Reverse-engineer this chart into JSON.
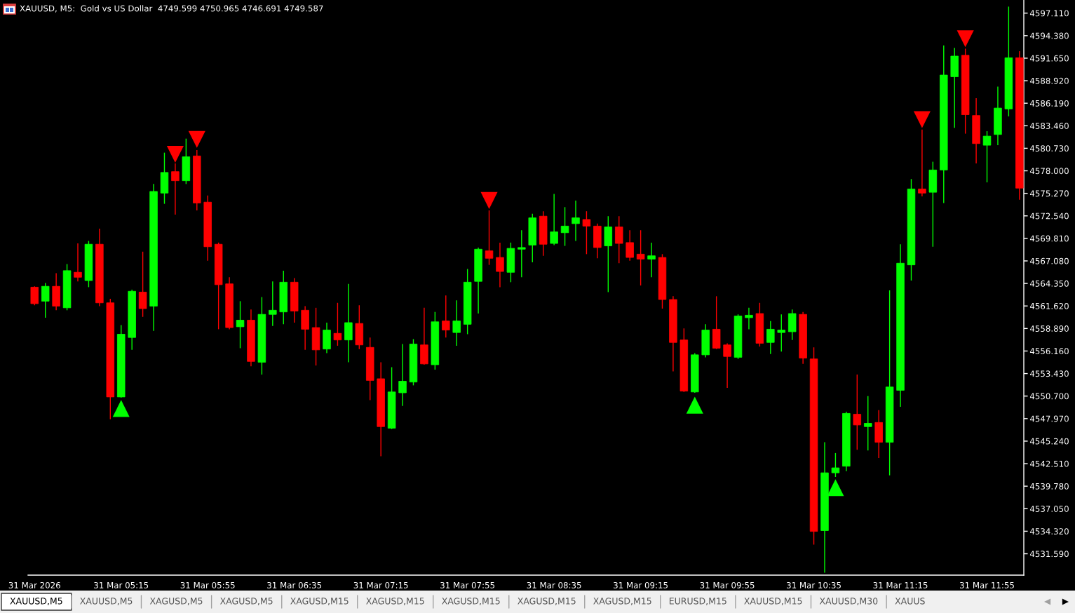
{
  "chart_data": {
    "type": "candlestick",
    "title": "XAUUSD, M5:  Gold vs US Dollar  4749.599 4750.965 4746.691 4749.587",
    "x": [
      "2026-03-31T04:35",
      "2026-03-31T04:40",
      "2026-03-31T04:45",
      "2026-03-31T04:50",
      "2026-03-31T04:55",
      "2026-03-31T05:00",
      "2026-03-31T05:05",
      "2026-03-31T05:10",
      "2026-03-31T05:15",
      "2026-03-31T05:20",
      "2026-03-31T05:25",
      "2026-03-31T05:30",
      "2026-03-31T05:35",
      "2026-03-31T05:40",
      "2026-03-31T05:45",
      "2026-03-31T05:50",
      "2026-03-31T05:55",
      "2026-03-31T06:00",
      "2026-03-31T06:05",
      "2026-03-31T06:10",
      "2026-03-31T06:15",
      "2026-03-31T06:20",
      "2026-03-31T06:25",
      "2026-03-31T06:30",
      "2026-03-31T06:35",
      "2026-03-31T06:40",
      "2026-03-31T06:45",
      "2026-03-31T06:50",
      "2026-03-31T06:55",
      "2026-03-31T07:00",
      "2026-03-31T07:05",
      "2026-03-31T07:10",
      "2026-03-31T07:15",
      "2026-03-31T07:20",
      "2026-03-31T07:25",
      "2026-03-31T07:30",
      "2026-03-31T07:35",
      "2026-03-31T07:40",
      "2026-03-31T07:45",
      "2026-03-31T07:50",
      "2026-03-31T07:55",
      "2026-03-31T08:00",
      "2026-03-31T08:05",
      "2026-03-31T08:10",
      "2026-03-31T08:15",
      "2026-03-31T08:20",
      "2026-03-31T08:25",
      "2026-03-31T08:30",
      "2026-03-31T08:35",
      "2026-03-31T08:40",
      "2026-03-31T08:45",
      "2026-03-31T08:50",
      "2026-03-31T08:55",
      "2026-03-31T09:00",
      "2026-03-31T09:05",
      "2026-03-31T09:10",
      "2026-03-31T09:15",
      "2026-03-31T09:20",
      "2026-03-31T09:25",
      "2026-03-31T09:30",
      "2026-03-31T09:35",
      "2026-03-31T09:40",
      "2026-03-31T09:45",
      "2026-03-31T09:50",
      "2026-03-31T09:55",
      "2026-03-31T10:00",
      "2026-03-31T10:05",
      "2026-03-31T10:10",
      "2026-03-31T10:15",
      "2026-03-31T10:20",
      "2026-03-31T10:25",
      "2026-03-31T10:30",
      "2026-03-31T10:35",
      "2026-03-31T10:40",
      "2026-03-31T10:45",
      "2026-03-31T10:50",
      "2026-03-31T10:55",
      "2026-03-31T11:00",
      "2026-03-31T11:05",
      "2026-03-31T11:10",
      "2026-03-31T11:15",
      "2026-03-31T11:20",
      "2026-03-31T11:25",
      "2026-03-31T11:30",
      "2026-03-31T11:35",
      "2026-03-31T11:40",
      "2026-03-31T11:45",
      "2026-03-31T11:50",
      "2026-03-31T11:55",
      "2026-03-31T12:00",
      "2026-03-31T12:05",
      "2026-03-31T12:10"
    ],
    "ohlc": [
      [
        4563.9,
        4564.0,
        4561.7,
        4561.9
      ],
      [
        4562.2,
        4564.4,
        4560.2,
        4564.0
      ],
      [
        4564.0,
        4565.6,
        4561.1,
        4561.6
      ],
      [
        4561.4,
        4566.7,
        4561.1,
        4565.9
      ],
      [
        4565.7,
        4569.2,
        4564.6,
        4565.1
      ],
      [
        4564.7,
        4569.5,
        4563.9,
        4569.1
      ],
      [
        4569.1,
        4571.0,
        4561.6,
        4562.0
      ],
      [
        4562.0,
        4562.5,
        4547.9,
        4550.6
      ],
      [
        4550.6,
        4559.3,
        4550.5,
        4558.2
      ],
      [
        4557.8,
        4563.6,
        4556.3,
        4563.4
      ],
      [
        4563.3,
        4568.2,
        4560.3,
        4561.3
      ],
      [
        4561.6,
        4576.4,
        4558.6,
        4575.5
      ],
      [
        4575.3,
        4580.2,
        4574.0,
        4577.8
      ],
      [
        4577.9,
        4578.9,
        4572.7,
        4576.8
      ],
      [
        4576.8,
        4581.9,
        4576.4,
        4579.7
      ],
      [
        4579.8,
        4580.5,
        4573.2,
        4574.1
      ],
      [
        4574.2,
        4575.0,
        4567.1,
        4568.8
      ],
      [
        4569.1,
        4569.3,
        4558.8,
        4564.2
      ],
      [
        4564.3,
        4565.1,
        4558.8,
        4559.0
      ],
      [
        4559.1,
        4562.2,
        4556.5,
        4559.9
      ],
      [
        4559.9,
        4561.2,
        4554.3,
        4554.9
      ],
      [
        4554.8,
        4562.7,
        4553.3,
        4560.6
      ],
      [
        4560.6,
        4564.6,
        4559.2,
        4561.1
      ],
      [
        4560.9,
        4565.9,
        4559.4,
        4564.5
      ],
      [
        4564.5,
        4565.0,
        4559.6,
        4561.0
      ],
      [
        4561.1,
        4561.6,
        4556.3,
        4558.8
      ],
      [
        4559.0,
        4561.4,
        4554.4,
        4556.3
      ],
      [
        4556.4,
        4559.6,
        4555.9,
        4558.7
      ],
      [
        4558.3,
        4562.0,
        4556.8,
        4557.5
      ],
      [
        4557.5,
        4564.3,
        4554.8,
        4559.6
      ],
      [
        4559.5,
        4561.7,
        4556.4,
        4556.9
      ],
      [
        4556.6,
        4557.8,
        4550.2,
        4552.6
      ],
      [
        4552.8,
        4554.8,
        4543.4,
        4547.0
      ],
      [
        4546.8,
        4554.2,
        4546.7,
        4551.2
      ],
      [
        4551.1,
        4557.0,
        4549.5,
        4552.5
      ],
      [
        4552.4,
        4557.6,
        4552.0,
        4557.0
      ],
      [
        4556.9,
        4561.4,
        4554.5,
        4554.6
      ],
      [
        4554.5,
        4560.9,
        4553.9,
        4559.7
      ],
      [
        4559.8,
        4562.9,
        4557.8,
        4558.7
      ],
      [
        4558.4,
        4562.3,
        4556.8,
        4559.8
      ],
      [
        4559.4,
        4566.1,
        4558.2,
        4564.5
      ],
      [
        4564.6,
        4568.7,
        4560.7,
        4568.5
      ],
      [
        4568.3,
        4573.2,
        4566.6,
        4567.4
      ],
      [
        4567.5,
        4569.3,
        4563.9,
        4565.8
      ],
      [
        4565.7,
        4569.3,
        4564.5,
        4568.6
      ],
      [
        4568.5,
        4570.8,
        4565.1,
        4568.7
      ],
      [
        4569.0,
        4572.8,
        4566.9,
        4572.3
      ],
      [
        4572.5,
        4573.1,
        4567.7,
        4569.1
      ],
      [
        4569.2,
        4575.2,
        4569.0,
        4570.6
      ],
      [
        4570.5,
        4573.6,
        4568.9,
        4571.3
      ],
      [
        4571.6,
        4574.4,
        4569.5,
        4572.3
      ],
      [
        4572.1,
        4573.1,
        4567.9,
        4571.3
      ],
      [
        4571.3,
        4571.6,
        4567.4,
        4568.7
      ],
      [
        4568.9,
        4572.5,
        4563.3,
        4571.2
      ],
      [
        4571.2,
        4572.5,
        4566.8,
        4569.2
      ],
      [
        4569.3,
        4570.8,
        4567.1,
        4567.5
      ],
      [
        4567.9,
        4570.8,
        4564.1,
        4567.3
      ],
      [
        4567.3,
        4569.3,
        4565.1,
        4567.7
      ],
      [
        4567.5,
        4567.9,
        4561.3,
        4562.4
      ],
      [
        4562.4,
        4562.8,
        4553.7,
        4557.2
      ],
      [
        4557.5,
        4558.9,
        4551.2,
        4551.3
      ],
      [
        4551.2,
        4555.9,
        4551.1,
        4555.7
      ],
      [
        4555.7,
        4559.4,
        4555.4,
        4558.7
      ],
      [
        4558.8,
        4562.8,
        4556.4,
        4556.5
      ],
      [
        4556.9,
        4557.1,
        4551.7,
        4555.5
      ],
      [
        4555.4,
        4560.6,
        4555.2,
        4560.4
      ],
      [
        4560.2,
        4561.4,
        4558.8,
        4560.5
      ],
      [
        4560.7,
        4562.0,
        4556.7,
        4557.1
      ],
      [
        4557.2,
        4559.8,
        4555.8,
        4558.8
      ],
      [
        4558.4,
        4560.6,
        4556.1,
        4558.7
      ],
      [
        4558.5,
        4561.2,
        4557.5,
        4560.7
      ],
      [
        4560.6,
        4560.9,
        4554.6,
        4555.3
      ],
      [
        4555.2,
        4556.6,
        4532.7,
        4534.3
      ],
      [
        4534.4,
        4545.1,
        4529.3,
        4541.4
      ],
      [
        4541.4,
        4543.8,
        4540.9,
        4542.0
      ],
      [
        4542.2,
        4548.8,
        4541.6,
        4548.6
      ],
      [
        4548.5,
        4553.3,
        4544.2,
        4547.2
      ],
      [
        4547.0,
        4550.7,
        4544.1,
        4547.4
      ],
      [
        4547.5,
        4549.0,
        4543.2,
        4545.1
      ],
      [
        4545.1,
        4563.5,
        4541.1,
        4551.8
      ],
      [
        4551.4,
        4569.1,
        4549.4,
        4566.8
      ],
      [
        4566.6,
        4577.0,
        4564.7,
        4575.8
      ],
      [
        4575.8,
        4583.0,
        4574.9,
        4575.3
      ],
      [
        4575.4,
        4579.1,
        4568.8,
        4578.1
      ],
      [
        4578.1,
        4593.2,
        4574.1,
        4589.6
      ],
      [
        4589.4,
        4592.9,
        4583.2,
        4591.9
      ],
      [
        4592.0,
        4592.8,
        4582.5,
        4584.8
      ],
      [
        4584.7,
        4586.8,
        4578.9,
        4581.3
      ],
      [
        4581.1,
        4582.8,
        4576.6,
        4582.2
      ],
      [
        4582.4,
        4588.2,
        4581.1,
        4585.6
      ],
      [
        4585.5,
        4597.9,
        4584.6,
        4591.7
      ],
      [
        4591.7,
        4592.5,
        4574.5,
        4575.9
      ]
    ],
    "colors": [
      "#ff0000",
      "#00ff00",
      "#ff0000",
      "#00ff00",
      "#ff0000",
      "#00ff00",
      "#ff0000",
      "#ff0000",
      "#00ff00",
      "#00ff00",
      "#ff0000",
      "#00ff00",
      "#00ff00",
      "#ff0000",
      "#00ff00",
      "#ff0000",
      "#ff0000",
      "#ff0000",
      "#ff0000",
      "#00ff00",
      "#ff0000",
      "#00ff00",
      "#00ff00",
      "#00ff00",
      "#ff0000",
      "#ff0000",
      "#ff0000",
      "#00ff00",
      "#ff0000",
      "#00ff00",
      "#ff0000",
      "#ff0000",
      "#ff0000",
      "#00ff00",
      "#00ff00",
      "#00ff00",
      "#ff0000",
      "#00ff00",
      "#ff0000",
      "#00ff00",
      "#00ff00",
      "#00ff00",
      "#ff0000",
      "#ff0000",
      "#00ff00",
      "#00ff00",
      "#00ff00",
      "#ff0000",
      "#00ff00",
      "#00ff00",
      "#00ff00",
      "#ff0000",
      "#ff0000",
      "#00ff00",
      "#ff0000",
      "#ff0000",
      "#ff0000",
      "#00ff00",
      "#ff0000",
      "#ff0000",
      "#ff0000",
      "#00ff00",
      "#00ff00",
      "#ff0000",
      "#ff0000",
      "#00ff00",
      "#00ff00",
      "#ff0000",
      "#00ff00",
      "#00ff00",
      "#00ff00",
      "#ff0000",
      "#ff0000",
      "#00ff00",
      "#00ff00",
      "#00ff00",
      "#ff0000",
      "#00ff00",
      "#ff0000",
      "#00ff00",
      "#00ff00",
      "#00ff00",
      "#ff0000",
      "#00ff00",
      "#00ff00",
      "#00ff00",
      "#ff0000",
      "#ff0000",
      "#00ff00",
      "#00ff00",
      "#00ff00",
      "#ff0000"
    ],
    "series": [
      {
        "type": "scatter",
        "x": [
          "2026-03-31T05:15",
          "2026-03-31T09:40",
          "2026-03-31T10:45"
        ],
        "values": [
          4549.2,
          4549.6,
          4539.6
        ],
        "color": "#00ff00",
        "marker": "triangle"
      },
      {
        "type": "scatter",
        "x": [
          "2026-03-31T05:40",
          "2026-03-31T05:50",
          "2026-03-31T08:05",
          "2026-03-31T11:25",
          "2026-03-31T11:45"
        ],
        "values": [
          4580.0,
          4581.8,
          4574.4,
          4584.2,
          4594.0
        ],
        "color": "#ff0000",
        "marker": "triangle"
      }
    ],
    "xlim": [
      "2026-03-31T04:32",
      "2026-03-31T12:12"
    ],
    "xticks": [
      {
        "value": "2026-03-31T04:35",
        "label": "31 Mar 2026"
      },
      {
        "value": "2026-03-31T05:15",
        "label": "31 Mar 05:15"
      },
      {
        "value": "2026-03-31T05:55",
        "label": "31 Mar 05:55"
      },
      {
        "value": "2026-03-31T06:35",
        "label": "31 Mar 06:35"
      },
      {
        "value": "2026-03-31T07:15",
        "label": "31 Mar 07:15"
      },
      {
        "value": "2026-03-31T07:55",
        "label": "31 Mar 07:55"
      },
      {
        "value": "2026-03-31T08:35",
        "label": "31 Mar 08:35"
      },
      {
        "value": "2026-03-31T09:15",
        "label": "31 Mar 09:15"
      },
      {
        "value": "2026-03-31T09:55",
        "label": "31 Mar 09:55"
      },
      {
        "value": "2026-03-31T10:35",
        "label": "31 Mar 10:35"
      },
      {
        "value": "2026-03-31T11:15",
        "label": "31 Mar 11:15"
      },
      {
        "value": "2026-03-31T11:55",
        "label": "31 Mar 11:55"
      }
    ],
    "ylim": [
      4529.0,
      4598.7
    ],
    "yticks": [
      {
        "value": 4597.11,
        "label": "4597.110"
      },
      {
        "value": 4594.38,
        "label": "4594.380"
      },
      {
        "value": 4591.65,
        "label": "4591.650"
      },
      {
        "value": 4588.92,
        "label": "4588.920"
      },
      {
        "value": 4586.19,
        "label": "4586.190"
      },
      {
        "value": 4583.46,
        "label": "4583.460"
      },
      {
        "value": 4580.73,
        "label": "4580.730"
      },
      {
        "value": 4578.0,
        "label": "4578.000"
      },
      {
        "value": 4575.27,
        "label": "4575.270"
      },
      {
        "value": 4572.54,
        "label": "4572.540"
      },
      {
        "value": 4569.81,
        "label": "4569.810"
      },
      {
        "value": 4567.08,
        "label": "4567.080"
      },
      {
        "value": 4564.35,
        "label": "4564.350"
      },
      {
        "value": 4561.62,
        "label": "4561.620"
      },
      {
        "value": 4558.89,
        "label": "4558.890"
      },
      {
        "value": 4556.16,
        "label": "4556.160"
      },
      {
        "value": 4553.43,
        "label": "4553.430"
      },
      {
        "value": 4550.7,
        "label": "4550.700"
      },
      {
        "value": 4547.97,
        "label": "4547.970"
      },
      {
        "value": 4545.24,
        "label": "4545.240"
      },
      {
        "value": 4542.51,
        "label": "4542.510"
      },
      {
        "value": 4539.78,
        "label": "4539.780"
      },
      {
        "value": 4537.05,
        "label": "4537.050"
      },
      {
        "value": 4534.32,
        "label": "4534.320"
      },
      {
        "value": 4531.59,
        "label": "4531.590"
      }
    ],
    "annotations": [
      "XAUUSD,M5",
      "XAUUSD,M5",
      "XAGUSD,M5",
      "XAGUSD,M5",
      "XAGUSD,M15",
      "XAGUSD,M15",
      "XAGUSD,M15",
      "XAGUSD,M15",
      "XAGUSD,M15",
      "EURUSD,M15",
      "XAUUSD,M15",
      "XAUUSD,M30",
      "XAUUS"
    ]
  }
}
